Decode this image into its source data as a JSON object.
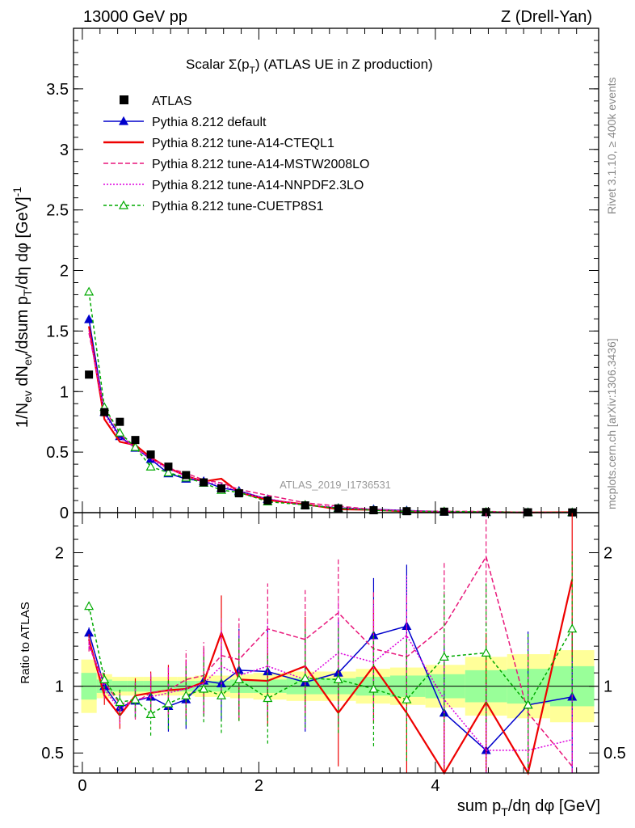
{
  "chart_data": {
    "type": "line",
    "header_left": "13000 GeV pp",
    "header_right": "Z (Drell-Yan)",
    "title_main": "Scalar Σ(p",
    "title_sub": "T",
    "title_tail": ") (ATLAS UE in Z production)",
    "watermark": "ATLAS_2019_I1736531",
    "side_text_top": "Rivet 3.1.10, ≥ 400k events",
    "side_text_bottom": "mcplots.cern.ch [arXiv:1306.3436]",
    "ylabel": "1/N_ev dN_ev/dsum p_T/dη dφ [GeV]^-1",
    "ylabel_parts": {
      "a": "1/N",
      "b": "ev",
      "c": " dN",
      "d": "ev",
      "e": "/dsum p",
      "f": "T",
      "g": "/dη dφ  [GeV]",
      "h": "-1"
    },
    "xlabel_parts": {
      "a": "sum p",
      "b": "T",
      "c": "/dη dφ [GeV]"
    },
    "ratio_ylabel": "Ratio to ATLAS",
    "xlim": [
      -0.1,
      5.85
    ],
    "ylim_main": [
      0,
      4.0
    ],
    "ylim_ratio": [
      0.35,
      2.3
    ],
    "x_ticks": [
      "0",
      "2",
      "4"
    ],
    "y_ticks_main": [
      "0",
      "0.5",
      "1",
      "1.5",
      "2",
      "2.5",
      "3",
      "3.5"
    ],
    "y_ticks_ratio": [
      "0.5",
      "1",
      "2"
    ],
    "x": [
      0.075,
      0.25,
      0.425,
      0.6,
      0.775,
      0.975,
      1.175,
      1.375,
      1.575,
      1.775,
      2.1,
      2.525,
      2.9,
      3.3,
      3.675,
      4.1,
      4.575,
      5.05,
      5.55
    ],
    "atlas_values": [
      1.14,
      0.83,
      0.75,
      0.6,
      0.48,
      0.38,
      0.31,
      0.25,
      0.2,
      0.16,
      0.1,
      0.06,
      0.035,
      0.02,
      0.012,
      0.008,
      0.005,
      0.003,
      0.002
    ],
    "band_inner": [
      0.1,
      0.05,
      0.04,
      0.04,
      0.04,
      0.04,
      0.04,
      0.04,
      0.04,
      0.05,
      0.05,
      0.06,
      0.06,
      0.07,
      0.08,
      0.09,
      0.12,
      0.13,
      0.15
    ],
    "band_outer": [
      0.2,
      0.09,
      0.07,
      0.07,
      0.07,
      0.07,
      0.07,
      0.08,
      0.08,
      0.09,
      0.1,
      0.11,
      0.11,
      0.13,
      0.14,
      0.16,
      0.22,
      0.24,
      0.27
    ],
    "series": [
      {
        "name": "ATLAS",
        "color": "#000000",
        "dash": "",
        "marker": "square"
      },
      {
        "name": "Pythia 8.212 default",
        "color": "#0000cc",
        "dash": "",
        "marker": "triangle",
        "ratio": [
          1.4,
          1.0,
          0.84,
          0.89,
          0.92,
          0.85,
          0.9,
          1.04,
          1.02,
          1.12,
          1.11,
          1.03,
          1.1,
          1.38,
          1.45,
          0.8,
          0.52,
          0.86,
          0.92
        ]
      },
      {
        "name": "Pythia 8.212 tune-A14-CTEQL1",
        "color": "#ee0000",
        "dash": "",
        "marker": "none",
        "ratio": [
          1.35,
          0.93,
          0.78,
          0.93,
          0.95,
          0.97,
          0.98,
          1.03,
          1.4,
          1.05,
          1.04,
          1.15,
          0.8,
          1.15,
          0.8,
          0.35,
          0.88,
          0.28,
          1.8
        ]
      },
      {
        "name": "Pythia 8.212 tune-A14-MSTW2008LO",
        "color": "#e8177b",
        "dash": "6,3",
        "marker": "none",
        "ratio": [
          1.3,
          1.03,
          0.87,
          0.88,
          0.95,
          0.97,
          1.05,
          1.08,
          1.23,
          1.2,
          1.43,
          1.35,
          1.55,
          1.28,
          1.22,
          1.45,
          1.97,
          0.8,
          0.4
        ]
      },
      {
        "name": "Pythia 8.212 tune-A14-NNPDF2.3LO",
        "color": "#dd00dd",
        "dash": "2,2",
        "marker": "none",
        "ratio": [
          1.32,
          0.98,
          0.82,
          0.9,
          0.92,
          0.95,
          0.98,
          1.02,
          1.15,
          1.08,
          1.15,
          1.05,
          1.25,
          1.18,
          1.38,
          0.9,
          0.52,
          0.52,
          0.6
        ]
      },
      {
        "name": "Pythia 8.212 tune-CUETP8S1",
        "color": "#00aa00",
        "dash": "4,3",
        "marker": "triangle-open",
        "ratio": [
          1.6,
          1.05,
          0.88,
          0.9,
          0.79,
          0.87,
          0.93,
          0.98,
          0.93,
          1.05,
          0.91,
          1.06,
          1.05,
          0.98,
          0.9,
          1.22,
          1.25,
          0.86,
          1.43
        ]
      }
    ]
  }
}
